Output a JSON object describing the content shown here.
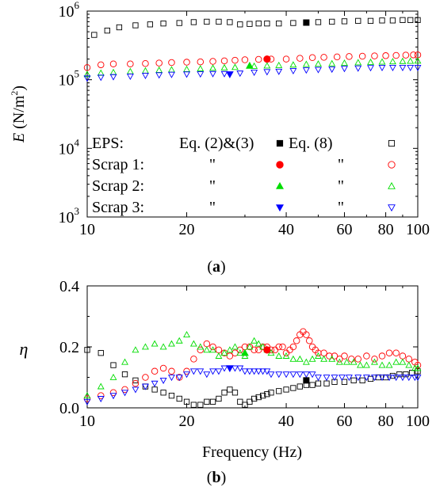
{
  "chart_data": [
    {
      "panel": "(a)",
      "type": "scatter",
      "x_scale": "log",
      "y_scale": "log",
      "xlim": [
        10,
        100
      ],
      "ylim": [
        1000,
        1000000
      ],
      "x_ticks": [
        10,
        20,
        40,
        60,
        80,
        100
      ],
      "x_tick_labels": [
        "10",
        "20",
        "40",
        "60",
        "80",
        "100"
      ],
      "y_ticks": [
        1000,
        10000,
        100000,
        1000000
      ],
      "y_tick_labels": [
        {
          "base": "10",
          "exp": "3"
        },
        {
          "base": "10",
          "exp": "4"
        },
        {
          "base": "10",
          "exp": "5"
        },
        {
          "base": "10",
          "exp": "6"
        }
      ],
      "ylabel": {
        "symbol": "E",
        "unit_open": " (N/m",
        "unit_exp": "2",
        "unit_close": ")"
      },
      "xlabel": "",
      "grid": false,
      "legend": {
        "placement": "inside-bottom-left",
        "col_headers": [
          "Eq. (2)&(3)",
          "Eq. (8)"
        ],
        "ditto": "\"",
        "rows": [
          {
            "label": "EPS:",
            "color": "#000000"
          },
          {
            "label": "Scrap 1:",
            "color": "#ff0000"
          },
          {
            "label": "Scrap 2:",
            "color": "#00dd00"
          },
          {
            "label": "Scrap 3:",
            "color": "#0000ff"
          }
        ]
      },
      "series": [
        {
          "name": "EPS",
          "method": "Eq. (8)",
          "marker": "square-open",
          "color": "#000000",
          "x": [
            10.5,
            11.5,
            12.5,
            14,
            15.5,
            17,
            19,
            21,
            23,
            25,
            27,
            29,
            31,
            33,
            35,
            38,
            42,
            46,
            50,
            55,
            60,
            66,
            72,
            78,
            84,
            90,
            95,
            100
          ],
          "values": [
            450000,
            520000,
            580000,
            620000,
            640000,
            660000,
            670000,
            690000,
            700000,
            700000,
            690000,
            640000,
            650000,
            660000,
            660000,
            660000,
            670000,
            680000,
            690000,
            700000,
            710000,
            720000,
            720000,
            730000,
            730000,
            740000,
            740000,
            740000
          ]
        },
        {
          "name": "Scrap 1",
          "method": "Eq. (8)",
          "marker": "circle-open",
          "color": "#ff0000",
          "x": [
            10,
            11,
            12,
            13.5,
            15,
            16.5,
            18,
            20,
            22,
            24,
            26,
            28,
            30,
            33,
            36,
            40,
            44,
            48,
            52,
            57,
            62,
            68,
            74,
            80,
            86,
            92,
            97,
            100
          ],
          "values": [
            150000,
            165000,
            170000,
            170000,
            172000,
            175000,
            178000,
            180000,
            182000,
            185000,
            188000,
            192000,
            195000,
            198000,
            200000,
            200000,
            205000,
            210000,
            212000,
            215000,
            218000,
            220000,
            222000,
            224000,
            226000,
            228000,
            230000,
            230000
          ]
        },
        {
          "name": "Scrap 2",
          "method": "Eq. (8)",
          "marker": "triangle-up-open",
          "color": "#00dd00",
          "x": [
            10,
            11,
            12,
            13.5,
            15,
            16.5,
            18,
            20,
            22,
            24,
            26,
            28,
            32,
            35,
            38,
            42,
            46,
            50,
            55,
            60,
            66,
            72,
            78,
            84,
            90,
            95,
            100
          ],
          "values": [
            120000,
            125000,
            128000,
            132000,
            135000,
            138000,
            140000,
            142000,
            145000,
            148000,
            150000,
            152000,
            158000,
            160000,
            162000,
            165000,
            168000,
            170000,
            172000,
            175000,
            178000,
            180000,
            182000,
            184000,
            186000,
            187000,
            188000
          ]
        },
        {
          "name": "Scrap 3",
          "method": "Eq. (8)",
          "marker": "triangle-down-open",
          "color": "#0000ff",
          "x": [
            10,
            11,
            12,
            13.5,
            15,
            16.5,
            18,
            20,
            22,
            24,
            26,
            29,
            32,
            35,
            38,
            42,
            46,
            50,
            55,
            60,
            66,
            72,
            78,
            84,
            90,
            95,
            100
          ],
          "values": [
            105000,
            108000,
            110000,
            112000,
            115000,
            117000,
            119000,
            120000,
            121000,
            122000,
            122000,
            124000,
            128000,
            130000,
            132000,
            135000,
            138000,
            140000,
            142000,
            145000,
            147000,
            149000,
            150000,
            150000,
            150000,
            150000,
            150000
          ]
        },
        {
          "name": "EPS",
          "method": "Eq. (2)&(3)",
          "marker": "square-filled",
          "color": "#000000",
          "x": [
            46
          ],
          "values": [
            680000
          ]
        },
        {
          "name": "Scrap 1",
          "method": "Eq. (2)&(3)",
          "marker": "circle-filled",
          "color": "#ff0000",
          "x": [
            35
          ],
          "values": [
            200000
          ]
        },
        {
          "name": "Scrap 2",
          "method": "Eq. (2)&(3)",
          "marker": "triangle-up-filled",
          "color": "#00dd00",
          "x": [
            31
          ],
          "values": [
            160000
          ]
        },
        {
          "name": "Scrap 3",
          "method": "Eq. (2)&(3)",
          "marker": "triangle-down-filled",
          "color": "#0000ff",
          "x": [
            27
          ],
          "values": [
            120000
          ]
        }
      ]
    },
    {
      "panel": "(b)",
      "type": "scatter",
      "x_scale": "log",
      "y_scale": "linear",
      "xlim": [
        10,
        100
      ],
      "ylim": [
        0,
        0.4
      ],
      "x_ticks": [
        10,
        20,
        40,
        60,
        80,
        100
      ],
      "x_tick_labels": [
        "10",
        "20",
        "40",
        "60",
        "80",
        "100"
      ],
      "y_ticks": [
        0,
        0.2,
        0.4
      ],
      "y_tick_labels": [
        "0.0",
        "0.2",
        "0.4"
      ],
      "xlabel": "Frequency (Hz)",
      "ylabel": "η",
      "grid": false,
      "series": [
        {
          "name": "EPS",
          "method": "Eq. (8)",
          "marker": "square-open",
          "color": "#000000",
          "x": [
            10,
            11,
            12,
            13,
            14,
            15,
            16,
            17,
            18,
            19,
            20,
            21,
            22,
            23,
            24,
            25,
            26,
            27,
            28,
            29,
            30,
            31,
            32,
            33,
            34,
            35,
            36,
            38,
            40,
            42,
            44,
            46,
            48,
            50,
            53,
            56,
            60,
            64,
            68,
            72,
            76,
            80,
            84,
            88,
            92,
            96,
            100
          ],
          "values": [
            0.19,
            0.18,
            0.14,
            0.11,
            0.09,
            0.07,
            0.06,
            0.05,
            0.04,
            0.03,
            0.02,
            0.01,
            0.01,
            0.02,
            0.02,
            0.03,
            0.05,
            0.06,
            0.05,
            0.02,
            0.01,
            0.02,
            0.03,
            0.035,
            0.04,
            0.045,
            0.05,
            0.055,
            0.06,
            0.065,
            0.07,
            0.075,
            0.075,
            0.08,
            0.08,
            0.085,
            0.085,
            0.09,
            0.09,
            0.095,
            0.1,
            0.1,
            0.105,
            0.11,
            0.11,
            0.115,
            0.12
          ]
        },
        {
          "name": "Scrap 1",
          "method": "Eq. (8)",
          "marker": "circle-open",
          "color": "#ff0000",
          "x": [
            10,
            11,
            12,
            13,
            14,
            15,
            16,
            17,
            18,
            19,
            20,
            21,
            22,
            23,
            24,
            25,
            26,
            27,
            28,
            29,
            30,
            31,
            32,
            33,
            34,
            35,
            36,
            37,
            38,
            39,
            40,
            41,
            42,
            43,
            44,
            45,
            46,
            47,
            48,
            49,
            50,
            52,
            54,
            56,
            58,
            60,
            63,
            66,
            70,
            74,
            78,
            82,
            86,
            90,
            94,
            98,
            100
          ],
          "values": [
            0.03,
            0.04,
            0.05,
            0.06,
            0.08,
            0.1,
            0.12,
            0.13,
            0.12,
            0.1,
            0.12,
            0.16,
            0.19,
            0.21,
            0.2,
            0.19,
            0.18,
            0.17,
            0.18,
            0.19,
            0.2,
            0.2,
            0.19,
            0.19,
            0.2,
            0.2,
            0.19,
            0.19,
            0.2,
            0.2,
            0.18,
            0.19,
            0.2,
            0.22,
            0.24,
            0.25,
            0.24,
            0.22,
            0.2,
            0.19,
            0.18,
            0.18,
            0.17,
            0.17,
            0.16,
            0.17,
            0.16,
            0.16,
            0.17,
            0.16,
            0.17,
            0.18,
            0.18,
            0.17,
            0.16,
            0.15,
            0.14
          ]
        },
        {
          "name": "Scrap 2",
          "method": "Eq. (8)",
          "marker": "triangle-up-open",
          "color": "#00dd00",
          "x": [
            10,
            11,
            12,
            13,
            14,
            15,
            16,
            17,
            18,
            19,
            20,
            21,
            22,
            23,
            24,
            25,
            26,
            27,
            28,
            29,
            30,
            31,
            32,
            33,
            34,
            35,
            36,
            38,
            40,
            42,
            44,
            46,
            48,
            50,
            52,
            55,
            58,
            61,
            64,
            67,
            70,
            74,
            78,
            82,
            86,
            90,
            94,
            98,
            100
          ],
          "values": [
            0.04,
            0.07,
            0.1,
            0.15,
            0.19,
            0.2,
            0.21,
            0.2,
            0.21,
            0.22,
            0.24,
            0.21,
            0.2,
            0.19,
            0.19,
            0.17,
            0.18,
            0.19,
            0.2,
            0.18,
            0.17,
            0.2,
            0.22,
            0.21,
            0.2,
            0.19,
            0.18,
            0.17,
            0.17,
            0.16,
            0.16,
            0.15,
            0.16,
            0.17,
            0.16,
            0.16,
            0.15,
            0.15,
            0.15,
            0.14,
            0.14,
            0.15,
            0.14,
            0.14,
            0.15,
            0.15,
            0.14,
            0.13,
            0.13
          ]
        },
        {
          "name": "Scrap 3",
          "method": "Eq. (8)",
          "marker": "triangle-down-open",
          "color": "#0000ff",
          "x": [
            10,
            11,
            12,
            13,
            14,
            15,
            16,
            17,
            18,
            19,
            20,
            21,
            22,
            23,
            24,
            25,
            26,
            27,
            28,
            29,
            30,
            31,
            32,
            33,
            34,
            35,
            36,
            38,
            40,
            42,
            44,
            46,
            48,
            50,
            53,
            56,
            59,
            62,
            66,
            70,
            74,
            78,
            82,
            86,
            90,
            94,
            98,
            100
          ],
          "values": [
            0.02,
            0.03,
            0.04,
            0.05,
            0.06,
            0.07,
            0.08,
            0.09,
            0.1,
            0.1,
            0.11,
            0.12,
            0.12,
            0.11,
            0.12,
            0.12,
            0.13,
            0.13,
            0.13,
            0.13,
            0.12,
            0.12,
            0.12,
            0.12,
            0.12,
            0.12,
            0.11,
            0.11,
            0.11,
            0.11,
            0.11,
            0.11,
            0.11,
            0.1,
            0.1,
            0.1,
            0.1,
            0.1,
            0.1,
            0.1,
            0.1,
            0.1,
            0.1,
            0.1,
            0.1,
            0.1,
            0.1,
            0.1
          ]
        },
        {
          "name": "EPS",
          "method": "Eq. (2)&(3)",
          "marker": "square-filled",
          "color": "#000000",
          "x": [
            46
          ],
          "values": [
            0.09
          ]
        },
        {
          "name": "Scrap 1",
          "method": "Eq. (2)&(3)",
          "marker": "circle-filled",
          "color": "#ff0000",
          "x": [
            35
          ],
          "values": [
            0.19
          ]
        },
        {
          "name": "Scrap 2",
          "method": "Eq. (2)&(3)",
          "marker": "triangle-up-filled",
          "color": "#00dd00",
          "x": [
            30
          ],
          "values": [
            0.18
          ]
        },
        {
          "name": "Scrap 3",
          "method": "Eq. (2)&(3)",
          "marker": "triangle-down-filled",
          "color": "#0000ff",
          "x": [
            27
          ],
          "values": [
            0.13
          ]
        }
      ]
    }
  ],
  "captions": {
    "a": {
      "open": "(",
      "letter": "a",
      "close": ")"
    },
    "b": {
      "open": "(",
      "letter": "b",
      "close": ")"
    }
  }
}
